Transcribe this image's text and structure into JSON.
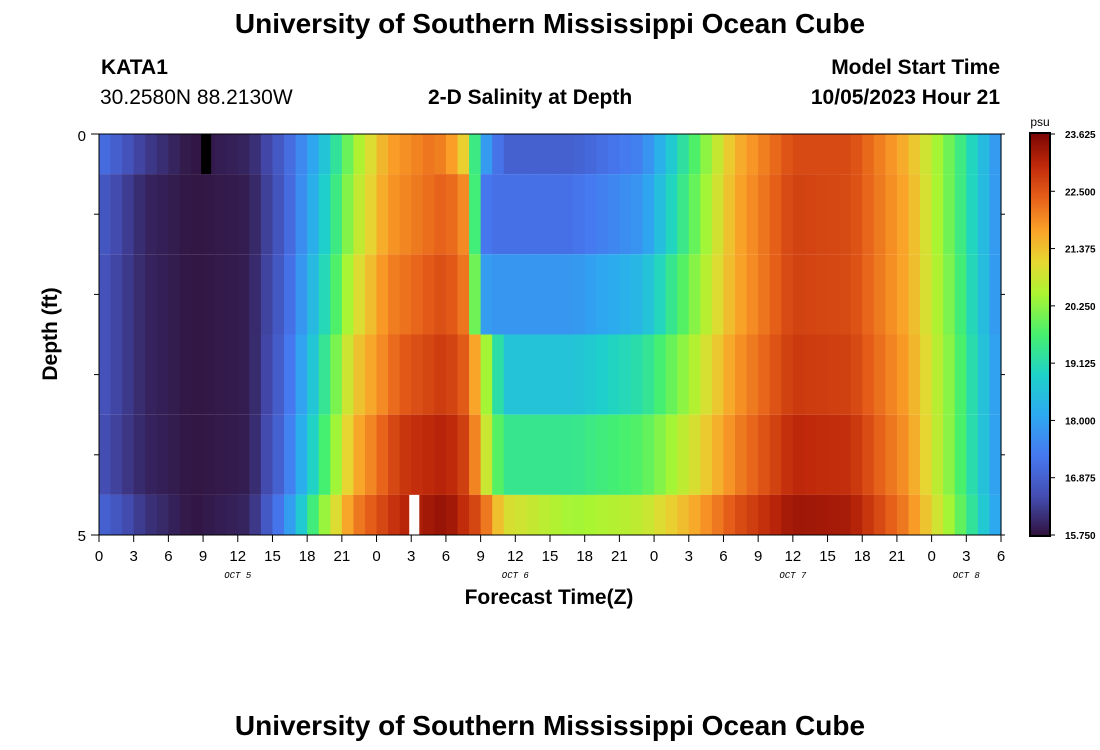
{
  "page": {
    "title": "University of Southern Mississippi Ocean Cube",
    "footer_title": "University of Southern Mississippi Ocean Cube",
    "station": "KATA1",
    "coords": "30.2580N  88.2130W",
    "subtitle": "2-D Salinity at Depth",
    "model_label": "Model Start Time",
    "model_time": "10/05/2023 Hour 21"
  },
  "chart_data": {
    "type": "heatmap",
    "title": "2-D Salinity at Depth",
    "xlabel": "Forecast Time(Z)",
    "ylabel": "Depth (ft)",
    "colorbar_unit": "psu",
    "x_range_hours": [
      0,
      78
    ],
    "x_step_hours": 1,
    "y_range": [
      0,
      5
    ],
    "y_ticks": [
      "0",
      "5"
    ],
    "x_tick_labels": [
      "0",
      "3",
      "6",
      "9",
      "12",
      "15",
      "18",
      "21",
      "0",
      "3",
      "6",
      "9",
      "12",
      "15",
      "18",
      "21",
      "0",
      "3",
      "6",
      "9",
      "12",
      "15",
      "18",
      "21",
      "0",
      "3",
      "6"
    ],
    "date_labels": [
      {
        "text": "OCT 5",
        "x_hours": 12
      },
      {
        "text": "OCT 6",
        "x_hours": 36
      },
      {
        "text": "OCT 7",
        "x_hours": 60
      },
      {
        "text": "OCT 8",
        "x_hours": 75
      }
    ],
    "colorbar": {
      "min": 15.75,
      "max": 23.625,
      "ticks": [
        "23.625",
        "22.500",
        "21.375",
        "20.250",
        "19.125",
        "18.000",
        "16.875",
        "15.750"
      ]
    },
    "depth_layers": [
      "0-0.5",
      "0.5-1.5",
      "1.5-2.5",
      "2.5-3.5",
      "3.5-4.5",
      "4.5-5"
    ],
    "salinity_keypoints": [
      [
        [
          0,
          17.2
        ],
        [
          4,
          16.3
        ],
        [
          8,
          15.8
        ],
        [
          13,
          16.0
        ],
        [
          16,
          16.9
        ],
        [
          19,
          18.3
        ],
        [
          22,
          20.3
        ],
        [
          25,
          21.7
        ],
        [
          29,
          22.2
        ],
        [
          31,
          21.6
        ],
        [
          32,
          20.8
        ],
        [
          33,
          18.2
        ],
        [
          35,
          16.9
        ],
        [
          41,
          16.9
        ],
        [
          47,
          17.5
        ],
        [
          51,
          19.5
        ],
        [
          55,
          21.5
        ],
        [
          60,
          22.6
        ],
        [
          65,
          22.6
        ],
        [
          70,
          21.5
        ],
        [
          74,
          19.8
        ],
        [
          78,
          17.6
        ]
      ],
      [
        [
          0,
          16.8
        ],
        [
          4,
          16.0
        ],
        [
          8,
          15.8
        ],
        [
          13,
          15.9
        ],
        [
          16,
          16.8
        ],
        [
          19,
          18.5
        ],
        [
          22,
          20.5
        ],
        [
          25,
          21.8
        ],
        [
          30,
          22.4
        ],
        [
          32,
          21.8
        ],
        [
          33,
          17.4
        ],
        [
          34,
          17.2
        ],
        [
          41,
          17.2
        ],
        [
          47,
          17.8
        ],
        [
          51,
          19.7
        ],
        [
          55,
          21.6
        ],
        [
          60,
          22.7
        ],
        [
          65,
          22.6
        ],
        [
          70,
          21.6
        ],
        [
          74,
          19.8
        ],
        [
          78,
          17.6
        ]
      ],
      [
        [
          0,
          16.7
        ],
        [
          4,
          16.0
        ],
        [
          8,
          15.8
        ],
        [
          13,
          15.9
        ],
        [
          16,
          16.9
        ],
        [
          19,
          18.7
        ],
        [
          22,
          20.8
        ],
        [
          25,
          22.0
        ],
        [
          30,
          22.6
        ],
        [
          32,
          22.0
        ],
        [
          33,
          18.0
        ],
        [
          34,
          17.8
        ],
        [
          41,
          17.8
        ],
        [
          47,
          18.4
        ],
        [
          51,
          20.0
        ],
        [
          55,
          21.6
        ],
        [
          60,
          22.7
        ],
        [
          65,
          22.6
        ],
        [
          70,
          21.6
        ],
        [
          74,
          19.9
        ],
        [
          78,
          17.6
        ]
      ],
      [
        [
          0,
          16.7
        ],
        [
          4,
          16.0
        ],
        [
          8,
          15.8
        ],
        [
          13,
          15.9
        ],
        [
          16,
          17.0
        ],
        [
          19,
          19.0
        ],
        [
          22,
          21.2
        ],
        [
          26,
          22.4
        ],
        [
          30,
          22.8
        ],
        [
          32,
          22.3
        ],
        [
          34,
          19.8
        ],
        [
          35,
          18.6
        ],
        [
          41,
          18.6
        ],
        [
          47,
          19.2
        ],
        [
          51,
          20.4
        ],
        [
          55,
          21.8
        ],
        [
          60,
          22.8
        ],
        [
          65,
          22.7
        ],
        [
          70,
          21.7
        ],
        [
          74,
          20.0
        ],
        [
          78,
          17.7
        ]
      ],
      [
        [
          0,
          16.6
        ],
        [
          4,
          16.0
        ],
        [
          8,
          15.8
        ],
        [
          13,
          15.9
        ],
        [
          16,
          17.1
        ],
        [
          19,
          19.3
        ],
        [
          22,
          21.5
        ],
        [
          26,
          22.8
        ],
        [
          30,
          23.1
        ],
        [
          32,
          22.6
        ],
        [
          34,
          20.2
        ],
        [
          35,
          19.4
        ],
        [
          41,
          19.4
        ],
        [
          47,
          19.8
        ],
        [
          51,
          20.8
        ],
        [
          55,
          22.0
        ],
        [
          60,
          23.0
        ],
        [
          65,
          22.9
        ],
        [
          70,
          21.8
        ],
        [
          74,
          20.0
        ],
        [
          78,
          17.7
        ]
      ],
      [
        [
          0,
          17.0
        ],
        [
          4,
          16.2
        ],
        [
          8,
          15.8
        ],
        [
          13,
          16.0
        ],
        [
          16,
          17.5
        ],
        [
          19,
          20.0
        ],
        [
          22,
          22.0
        ],
        [
          26,
          23.0
        ],
        [
          30,
          23.4
        ],
        [
          33,
          22.5
        ],
        [
          35,
          21.0
        ],
        [
          41,
          20.4
        ],
        [
          47,
          20.7
        ],
        [
          51,
          21.5
        ],
        [
          55,
          22.5
        ],
        [
          60,
          23.3
        ],
        [
          65,
          23.2
        ],
        [
          70,
          22.0
        ],
        [
          74,
          20.2
        ],
        [
          78,
          17.8
        ]
      ]
    ],
    "marker_black": {
      "depth_layer": 0,
      "x_hours": 9
    },
    "marker_white": {
      "depth_layer": 5,
      "x_hours": 27
    }
  }
}
